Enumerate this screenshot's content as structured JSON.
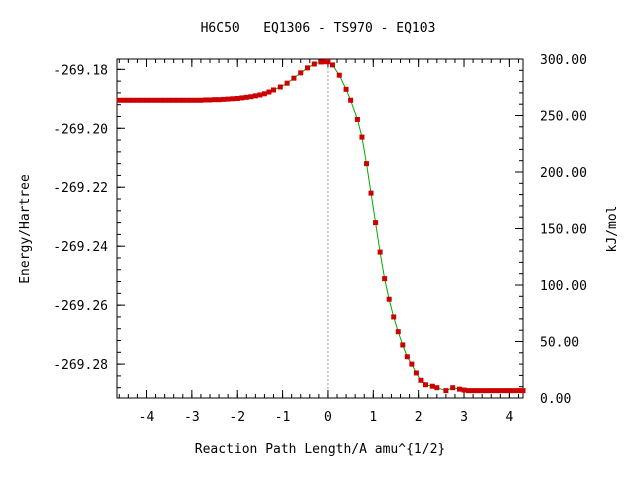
{
  "chart_data": {
    "type": "line",
    "title": "H6C50   EQ1306 - TS970 - EQ103",
    "xlabel": "Reaction Path Length/A amu^{1/2}",
    "ylabel": "Energy/Hartree",
    "y2label": "kJ/mol",
    "xlim": [
      -4.65,
      4.3
    ],
    "ylim": [
      -269.2915,
      -269.1765
    ],
    "y2lim": [
      0,
      300
    ],
    "xticks": [
      "-4",
      "-3",
      "-2",
      "-1",
      "0",
      "1",
      "2",
      "3",
      "4"
    ],
    "yticks": [
      "-269.18",
      "-269.20",
      "-269.22",
      "-269.24",
      "-269.26",
      "-269.28"
    ],
    "y2ticks": [
      "0.00",
      "50.00",
      "100.00",
      "150.00",
      "200.00",
      "250.00",
      "300.00"
    ],
    "ts_x": 0,
    "line_color": "#00aa00",
    "marker_color": "#cc0000",
    "series": [
      {
        "x": [
          -4.6,
          -4.5,
          -4.4,
          -4.3,
          -4.2,
          -4.1,
          -4.0,
          -3.9,
          -3.8,
          -3.7,
          -3.6,
          -3.5,
          -3.4,
          -3.3,
          -3.2,
          -3.1,
          -3.0,
          -2.9,
          -2.8,
          -2.7,
          -2.6,
          -2.5,
          -2.4,
          -2.3,
          -2.2,
          -2.1,
          -2.0,
          -1.9,
          -1.8,
          -1.7,
          -1.6,
          -1.5,
          -1.4,
          -1.3,
          -1.2,
          -1.05,
          -0.9,
          -0.75,
          -0.6,
          -0.45,
          -0.3,
          -0.15,
          -0.05,
          0.0,
          0.1,
          0.25,
          0.4,
          0.5,
          0.65,
          0.75,
          0.85,
          0.95,
          1.05,
          1.15,
          1.25,
          1.35,
          1.45,
          1.55,
          1.65,
          1.75,
          1.85,
          1.95,
          2.05,
          2.15,
          2.3,
          2.4,
          2.6,
          2.75,
          2.9,
          3.0,
          3.1,
          3.2,
          3.3,
          3.4,
          3.5,
          3.6,
          3.7,
          3.8,
          3.9,
          4.0,
          4.1,
          4.2,
          4.3
        ],
        "y": [
          -269.1905,
          -269.1905,
          -269.1905,
          -269.1905,
          -269.1905,
          -269.1905,
          -269.1905,
          -269.1905,
          -269.1905,
          -269.1905,
          -269.1905,
          -269.1905,
          -269.1905,
          -269.1905,
          -269.1905,
          -269.1905,
          -269.1905,
          -269.1905,
          -269.1905,
          -269.1904,
          -269.1904,
          -269.1903,
          -269.1903,
          -269.1902,
          -269.1901,
          -269.19,
          -269.1899,
          -269.1897,
          -269.1895,
          -269.1893,
          -269.189,
          -269.1887,
          -269.1883,
          -269.1877,
          -269.187,
          -269.186,
          -269.1847,
          -269.183,
          -269.1812,
          -269.1795,
          -269.1782,
          -269.1775,
          -269.1774,
          -269.1774,
          -269.1785,
          -269.182,
          -269.1868,
          -269.1905,
          -269.197,
          -269.203,
          -269.212,
          -269.222,
          -269.232,
          -269.242,
          -269.251,
          -269.258,
          -269.264,
          -269.269,
          -269.2735,
          -269.2775,
          -269.28,
          -269.283,
          -269.2855,
          -269.287,
          -269.2875,
          -269.288,
          -269.289,
          -269.288,
          -269.2885,
          -269.2888,
          -269.289,
          -269.289,
          -269.289,
          -269.289,
          -269.289,
          -269.289,
          -269.289,
          -269.289,
          -269.289,
          -269.289,
          -269.289,
          -269.289,
          -269.289
        ]
      }
    ]
  }
}
